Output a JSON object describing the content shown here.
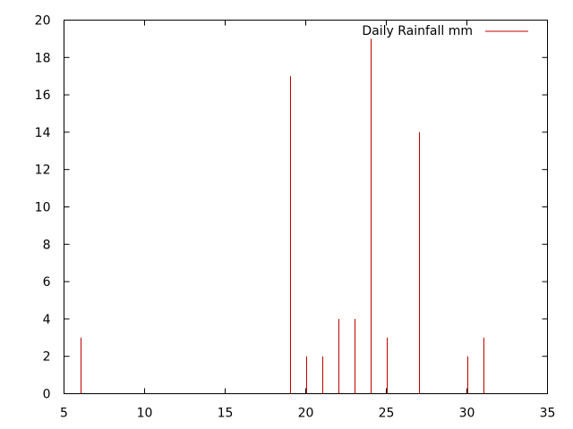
{
  "chart_data": {
    "type": "bar",
    "style": "impulses",
    "title": "",
    "xlabel": "",
    "ylabel": "",
    "xlim": [
      5,
      35
    ],
    "ylim": [
      0,
      20
    ],
    "xticks": [
      5,
      10,
      15,
      20,
      25,
      30,
      35
    ],
    "yticks": [
      0,
      2,
      4,
      6,
      8,
      10,
      12,
      14,
      16,
      18,
      20
    ],
    "grid": false,
    "legend_position": "top-right",
    "series": [
      {
        "name": "Daily Rainfall mm",
        "color": "#c00000",
        "x": [
          6,
          19,
          20,
          21,
          22,
          23,
          24,
          25,
          27,
          30,
          31
        ],
        "values": [
          3,
          17,
          2,
          2,
          4,
          4,
          19,
          3,
          14,
          2,
          3
        ]
      }
    ]
  }
}
